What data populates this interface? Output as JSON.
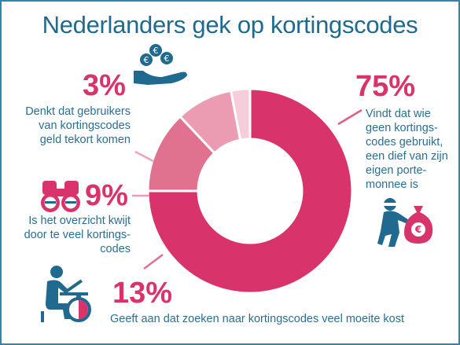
{
  "title": "Nederlanders gek op kortingscodes",
  "colors": {
    "frame": "#2b88a8",
    "title": "#1f6a8e",
    "text": "#2a6f92",
    "accent": "#d8336a"
  },
  "chart_data": {
    "type": "pie",
    "variant": "donut",
    "slices": [
      {
        "value": 75,
        "label": "75%",
        "description": "Vindt dat wie geen kortings-codes gebruikt, een dief van zijn eigen porte-monnee is",
        "color": "#d8336a"
      },
      {
        "value": 13,
        "label": "13%",
        "description": "Geeft aan dat zoeken naar kortingscodes veel moeite kost",
        "color": "#e0718f"
      },
      {
        "value": 9,
        "label": "9%",
        "description": "Is het overzicht kwijt door te veel kortings-codes",
        "color": "#eb9cb3"
      },
      {
        "value": 3,
        "label": "3%",
        "description": "Denkt dat gebruikers van kortingscodes geld tekort komen",
        "color": "#f6cedb"
      }
    ]
  },
  "labels": {
    "s75": {
      "pct": "75%",
      "lines": [
        "Vindt dat wie",
        "geen kortings-",
        "codes gebruikt,",
        "een dief van zijn",
        "eigen porte-",
        "monnee is"
      ]
    },
    "s3": {
      "pct": "3%",
      "lines": [
        "Denkt dat gebruikers",
        "van kortingscodes",
        "geld tekort komen"
      ]
    },
    "s9": {
      "pct": "9%",
      "lines": [
        "Is het overzicht kwijt",
        "door te veel kortings-",
        "codes"
      ]
    },
    "s13": {
      "pct": "13%",
      "lines": [
        "Geeft aan dat zoeken naar kortingscodes veel moeite kost"
      ]
    }
  },
  "icons": {
    "euro_coin": "€",
    "money_bag": "€"
  }
}
